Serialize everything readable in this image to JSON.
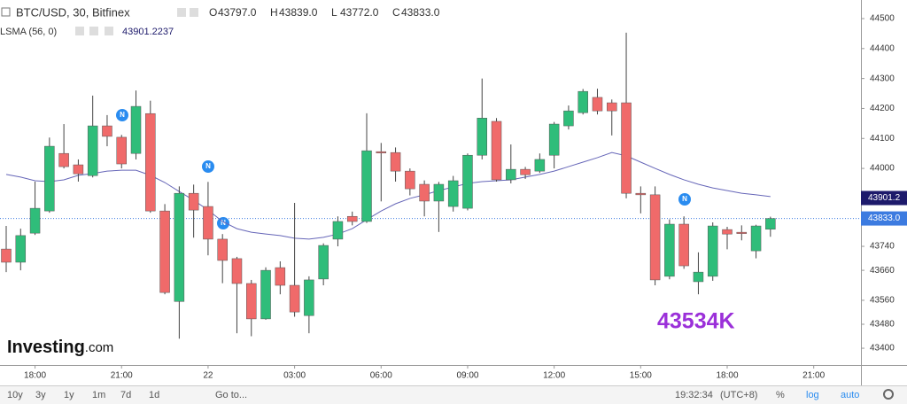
{
  "chart_data": {
    "type": "candlestick",
    "title": "BTC/USD, 30, Bitfinex",
    "ohlc_legend": [
      {
        "label": "O",
        "value": "43797.0"
      },
      {
        "label": "H",
        "value": "43839.0"
      },
      {
        "label": "L",
        "value": "43772.0"
      },
      {
        "label": "C",
        "value": "43833.0"
      }
    ],
    "categories": [
      null,
      null,
      "18:00",
      null,
      null,
      null,
      null,
      null,
      "21:00",
      null,
      null,
      null,
      null,
      null,
      "22",
      null,
      null,
      null,
      null,
      null,
      "03:00",
      null,
      null,
      null,
      null,
      null,
      "06:00",
      null,
      null,
      null,
      null,
      null,
      "09:00",
      null,
      null,
      null,
      null,
      null,
      "12:00",
      null,
      null,
      null,
      null,
      null,
      "15:00",
      null,
      null,
      null,
      null,
      null,
      "18:00",
      null,
      null,
      null,
      null,
      null,
      "21:00"
    ],
    "open": [
      43731,
      43687,
      43784,
      43858,
      44050,
      44012,
      43976,
      44142,
      44104,
      44050,
      44183,
      43858,
      43556,
      43917,
      43873,
      43764,
      43699,
      43616,
      43498,
      43669,
      43610,
      43509,
      43631,
      43764,
      43840,
      43823,
      44056,
      44053,
      43991,
      43947,
      43891,
      43873,
      43867,
      44044,
      44157,
      43962,
      43997,
      43991,
      44044,
      44142,
      44186,
      44237,
      44219,
      44219,
      43917,
      43912,
      43640,
      43814,
      43622,
      43640,
      43796,
      43787,
      43725,
      43797,
      null,
      null,
      null
    ],
    "high": [
      43808,
      43799,
      43956,
      44103,
      44148,
      44030,
      44243,
      44178,
      44112,
      44260,
      44226,
      43881,
      43940,
      43946,
      43955,
      43781,
      43705,
      43628,
      43670,
      43690,
      43885,
      43640,
      43750,
      43840,
      43856,
      44184,
      44085,
      44070,
      44000,
      43960,
      43955,
      43975,
      44050,
      44300,
      44168,
      44080,
      44005,
      44050,
      44155,
      44210,
      44265,
      44266,
      44230,
      44453,
      43940,
      43940,
      43830,
      43840,
      43720,
      43820,
      43805,
      43810,
      43812,
      43839,
      null,
      null,
      null
    ],
    "low": [
      43654,
      43660,
      43778,
      43852,
      44000,
      43956,
      43970,
      44074,
      44000,
      44030,
      43852,
      43580,
      43432,
      43769,
      43710,
      43617,
      43450,
      43440,
      43495,
      43580,
      43505,
      43450,
      43610,
      43740,
      43810,
      43818,
      43890,
      43956,
      43910,
      43840,
      43788,
      43856,
      43860,
      44030,
      43956,
      43950,
      43965,
      43985,
      44000,
      44130,
      44180,
      44180,
      44110,
      43900,
      43850,
      43610,
      43630,
      43665,
      43580,
      43625,
      43730,
      43760,
      43700,
      43772,
      null,
      null,
      null
    ],
    "close": [
      43687,
      43776,
      43867,
      44074,
      44006,
      43982,
      44142,
      44107,
      44015,
      44207,
      43858,
      43586,
      43917,
      43861,
      43764,
      43693,
      43616,
      43498,
      43660,
      43610,
      43521,
      43628,
      43743,
      43823,
      43823,
      44059,
      44053,
      43991,
      43932,
      43891,
      43947,
      43959,
      44044,
      44168,
      43962,
      43997,
      43979,
      44030,
      44148,
      44192,
      44257,
      44192,
      44192,
      43917,
      43912,
      43628,
      43814,
      43675,
      43654,
      43808,
      43781,
      43784,
      43808,
      43833,
      null,
      null,
      null
    ],
    "up_color": "#2fbd7a",
    "down_color": "#f06a6a",
    "indicator": {
      "name": "LSMA (56, 0)",
      "value_label": "43901.2237",
      "color": "#6666b8",
      "values": [
        43980,
        43971,
        43959,
        43956,
        43962,
        43977,
        43983,
        43991,
        43994,
        43994,
        43977,
        43953,
        43923,
        43894,
        43861,
        43823,
        43799,
        43787,
        43781,
        43776,
        43767,
        43764,
        43770,
        43781,
        43799,
        43829,
        43858,
        43882,
        43900,
        43912,
        43926,
        43938,
        43950,
        43956,
        43959,
        43962,
        43971,
        43980,
        43991,
        44006,
        44021,
        44036,
        44053,
        44042,
        44021,
        44000,
        43980,
        43962,
        43947,
        43935,
        43926,
        43917,
        43912,
        43906,
        null,
        null,
        null
      ]
    },
    "ylim": [
      43344,
      44562
    ],
    "yticks": [
      43400,
      43480,
      43560,
      43660,
      43740,
      44000,
      44100,
      44200,
      44300,
      44400,
      44500
    ],
    "price_labels": [
      {
        "value": 43901.2,
        "color": "#1d1a6b"
      },
      {
        "value": 43833.0,
        "label": "43833.0",
        "color": "#3c7be0"
      }
    ],
    "annotation": "43534K",
    "watermark": [
      "Investing",
      ".com"
    ]
  },
  "toolbar": {
    "ranges": [
      "10y",
      "3y",
      "1y",
      "1m",
      "7d",
      "1d"
    ],
    "goto": "Go to...",
    "time": "19:32:34",
    "zone": "(UTC+8)",
    "options": [
      "%",
      "log",
      "auto"
    ]
  }
}
